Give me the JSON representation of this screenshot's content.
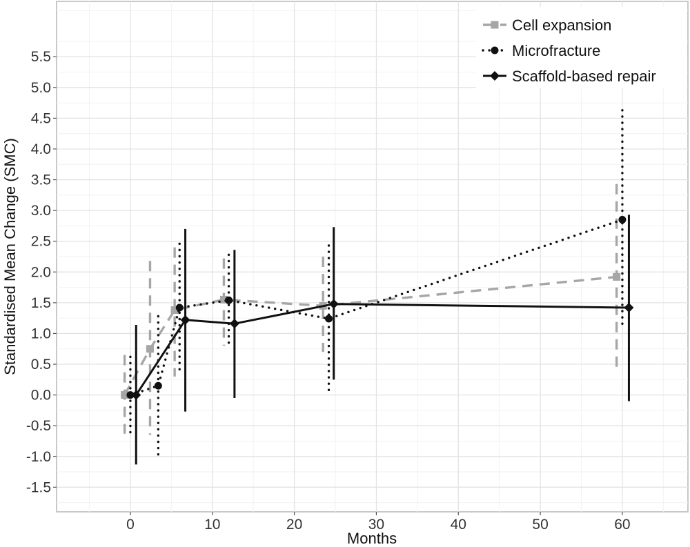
{
  "chart_data": {
    "type": "line",
    "title": "",
    "xlabel": "Months",
    "ylabel": "Standardised Mean Change (SMC)",
    "xlim": [
      -9,
      68
    ],
    "ylim": [
      -1.9,
      6.4
    ],
    "xticks": [
      0,
      10,
      20,
      30,
      40,
      50,
      60
    ],
    "xtick_labels": [
      "0",
      "10",
      "20",
      "30",
      "40",
      "50",
      "60"
    ],
    "yticks": [
      -1.5,
      -1.0,
      -0.5,
      0.0,
      0.5,
      1.0,
      1.5,
      2.0,
      2.5,
      3.0,
      3.5,
      4.0,
      4.5,
      5.0,
      5.5
    ],
    "ytick_labels": [
      "-1.5",
      "-1.0",
      "-0.5",
      "0.0",
      "0.5",
      "1.0",
      "1.5",
      "2.0",
      "2.5",
      "3.0",
      "3.5",
      "4.0",
      "4.5",
      "5.0",
      "5.5"
    ],
    "grid": true,
    "legend_position": "top-right",
    "series": [
      {
        "name": "Cell expansion",
        "id": "cell-expansion",
        "color": "#a6a6a6",
        "line_style": "dashed",
        "marker": "square",
        "points": [
          {
            "x": -0.7,
            "y": 0.0,
            "lo": -0.63,
            "hi": 0.65
          },
          {
            "x": 2.4,
            "y": 0.75,
            "lo": -0.65,
            "hi": 2.18
          },
          {
            "x": 5.4,
            "y": 1.38,
            "lo": 0.3,
            "hi": 2.4
          },
          {
            "x": 11.4,
            "y": 1.55,
            "lo": 0.8,
            "hi": 2.22
          },
          {
            "x": 23.5,
            "y": 1.45,
            "lo": 0.7,
            "hi": 2.25
          },
          {
            "x": 59.3,
            "y": 1.92,
            "lo": 0.45,
            "hi": 3.43
          }
        ]
      },
      {
        "name": "Microfracture",
        "id": "microfracture",
        "color": "#111111",
        "line_style": "dotted",
        "marker": "circle",
        "points": [
          {
            "x": 0.0,
            "y": 0.0,
            "lo": -0.62,
            "hi": 0.62
          },
          {
            "x": 3.4,
            "y": 0.15,
            "lo": -0.98,
            "hi": 1.28
          },
          {
            "x": 6.0,
            "y": 1.42,
            "lo": 0.38,
            "hi": 2.46
          },
          {
            "x": 12.0,
            "y": 1.54,
            "lo": 0.82,
            "hi": 2.28
          },
          {
            "x": 24.2,
            "y": 1.24,
            "lo": 0.05,
            "hi": 2.43
          },
          {
            "x": 60.0,
            "y": 2.85,
            "lo": 1.08,
            "hi": 4.63
          }
        ]
      },
      {
        "name": "Scaffold-based repair",
        "id": "scaffold-based-repair",
        "color": "#111111",
        "line_style": "solid",
        "marker": "diamond",
        "points": [
          {
            "x": 0.7,
            "y": 0.0,
            "lo": -1.13,
            "hi": 1.14
          },
          {
            "x": 6.7,
            "y": 1.22,
            "lo": -0.27,
            "hi": 2.7
          },
          {
            "x": 12.7,
            "y": 1.16,
            "lo": -0.05,
            "hi": 2.36
          },
          {
            "x": 24.8,
            "y": 1.48,
            "lo": 0.25,
            "hi": 2.73
          },
          {
            "x": 60.8,
            "y": 1.42,
            "lo": -0.1,
            "hi": 2.93
          }
        ]
      }
    ]
  }
}
